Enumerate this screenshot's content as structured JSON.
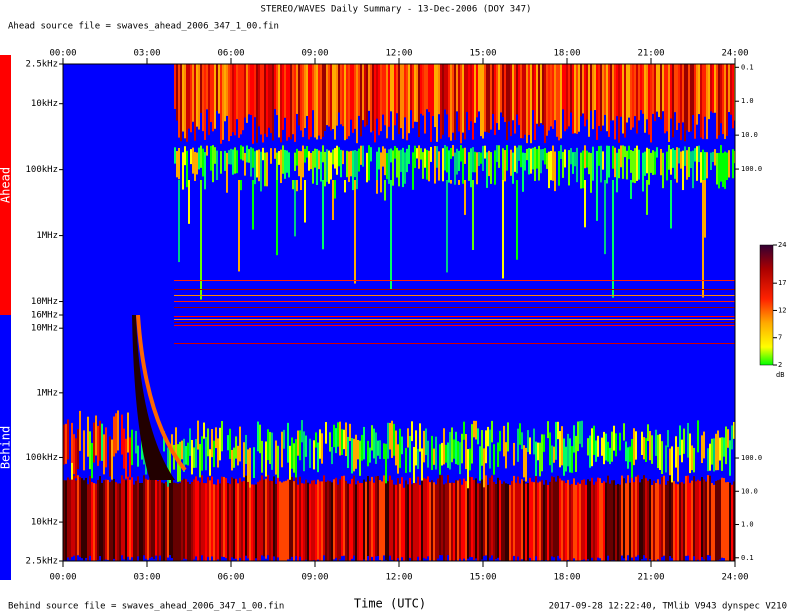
{
  "chart_data": {
    "type": "spectrogram",
    "title": "STEREO/WAVES Daily Summary - 13-Dec-2006 (DOY 347)",
    "subtitle": "Ahead source file = swaves_ahead_2006_347_1_00.fin",
    "footer_left": "Behind source file = swaves_ahead_2006_347_1_00.fin",
    "footer_right": "2017-09-28 12:22:40, TMlib V943 dynspec V210",
    "xlabel": "Time (UTC)",
    "xlim": [
      0,
      24
    ],
    "xticks": [
      {
        "value": 0,
        "label": "00:00"
      },
      {
        "value": 3,
        "label": "03:00"
      },
      {
        "value": 6,
        "label": "06:00"
      },
      {
        "value": 9,
        "label": "09:00"
      },
      {
        "value": 12,
        "label": "12:00"
      },
      {
        "value": 15,
        "label": "15:00"
      },
      {
        "value": 18,
        "label": "18:00"
      },
      {
        "value": 21,
        "label": "21:00"
      },
      {
        "value": 24,
        "label": "24:00"
      }
    ],
    "ylog": true,
    "panels": [
      {
        "name": "Ahead",
        "color": "#ff0000",
        "ylim": [
          2500,
          16000000
        ],
        "yticks": [
          {
            "value": 2500,
            "label": "2.5kHz"
          },
          {
            "value": 10000,
            "label": "10kHz"
          },
          {
            "value": 100000,
            "label": "100kHz"
          },
          {
            "value": 1000000,
            "label": "1MHz"
          },
          {
            "value": 10000000,
            "label": "10MHz"
          }
        ],
        "y2lim": [
          0.08,
          2000000
        ],
        "y2ticks": [
          {
            "value": 0.1,
            "label": "0.1"
          },
          {
            "value": 1,
            "label": "1.0"
          },
          {
            "value": 10,
            "label": "10.0"
          },
          {
            "value": 100,
            "label": "100.0"
          }
        ]
      },
      {
        "name": "Behind",
        "color": "#0000ff",
        "ylim": [
          2500,
          16000000
        ],
        "yticks": [
          {
            "value": 2500,
            "label": "2.5kHz"
          },
          {
            "value": 10000,
            "label": "10kHz"
          },
          {
            "value": 100000,
            "label": "100kHz"
          },
          {
            "value": 1000000,
            "label": "1MHz"
          },
          {
            "value": 10000000,
            "label": "10MHz"
          },
          {
            "value": 16000000,
            "label": "16MHz"
          }
        ],
        "y2lim": [
          0.08,
          2000000
        ],
        "y2ticks": [
          {
            "value": 0.1,
            "label": "0.1"
          },
          {
            "value": 1,
            "label": "1.0"
          },
          {
            "value": 10,
            "label": "10.0"
          },
          {
            "value": 100,
            "label": "100.0"
          }
        ]
      }
    ],
    "colorbar": {
      "clim": [
        2,
        24
      ],
      "ticks": [
        2,
        7,
        12,
        17,
        24
      ],
      "unit": "dB"
    }
  }
}
